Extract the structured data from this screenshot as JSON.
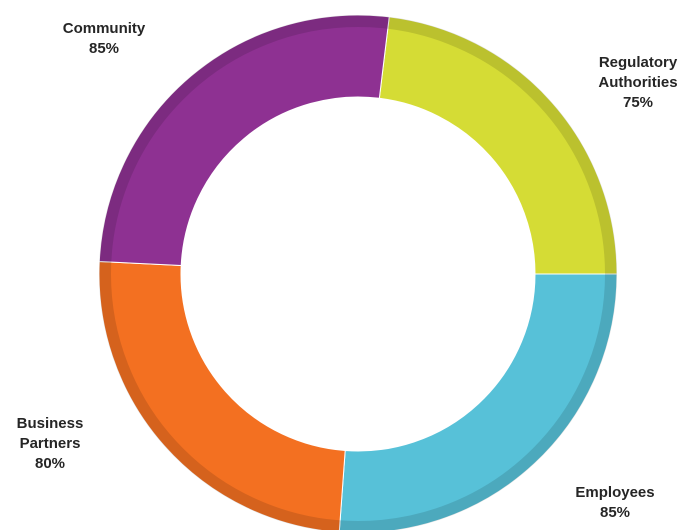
{
  "chart_data": {
    "type": "pie",
    "variant": "donut",
    "legend": "none",
    "slices": [
      {
        "key": "regulatory",
        "label_lines": [
          "Regulatory",
          "Authorities"
        ],
        "value_label": "75%",
        "value": 75,
        "color": "#d5dc35"
      },
      {
        "key": "employees",
        "label_lines": [
          "Employees"
        ],
        "value_label": "85%",
        "value": 85,
        "color": "#57c1d8"
      },
      {
        "key": "business",
        "label_lines": [
          "Business",
          "Partners"
        ],
        "value_label": "80%",
        "value": 80,
        "color": "#f37021"
      },
      {
        "key": "community",
        "label_lines": [
          "Community"
        ],
        "value_label": "85%",
        "value": 85,
        "color": "#8e3192"
      }
    ]
  }
}
